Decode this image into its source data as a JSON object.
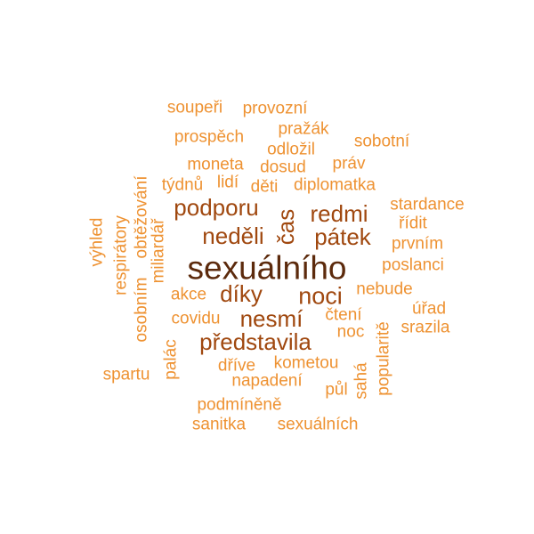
{
  "words": [
    {
      "text": "sexuálního",
      "level": 1
    },
    {
      "text": "noci",
      "level": 2
    },
    {
      "text": "nesmí",
      "level": 2
    },
    {
      "text": "podporu",
      "level": 2
    },
    {
      "text": "redmi",
      "level": 2
    },
    {
      "text": "neděli",
      "level": 2
    },
    {
      "text": "pátek",
      "level": 2
    },
    {
      "text": "čas",
      "level": 2
    },
    {
      "text": "díky",
      "level": 2
    },
    {
      "text": "představila",
      "level": 2
    },
    {
      "text": "soupeři",
      "level": 4
    },
    {
      "text": "provozní",
      "level": 4
    },
    {
      "text": "prospěch",
      "level": 4
    },
    {
      "text": "pražák",
      "level": 4
    },
    {
      "text": "odložil",
      "level": 4
    },
    {
      "text": "sobotní",
      "level": 4
    },
    {
      "text": "moneta",
      "level": 4
    },
    {
      "text": "dosud",
      "level": 4
    },
    {
      "text": "práv",
      "level": 4
    },
    {
      "text": "týdnů",
      "level": 4
    },
    {
      "text": "lidí",
      "level": 4
    },
    {
      "text": "děti",
      "level": 4
    },
    {
      "text": "diplomatka",
      "level": 4
    },
    {
      "text": "stardance",
      "level": 4
    },
    {
      "text": "řídit",
      "level": 4
    },
    {
      "text": "prvním",
      "level": 4
    },
    {
      "text": "poslanci",
      "level": 4
    },
    {
      "text": "nebude",
      "level": 4
    },
    {
      "text": "úřad",
      "level": 4
    },
    {
      "text": "srazila",
      "level": 4
    },
    {
      "text": "čtení",
      "level": 4
    },
    {
      "text": "noc",
      "level": 4
    },
    {
      "text": "akce",
      "level": 4
    },
    {
      "text": "covidu",
      "level": 4
    },
    {
      "text": "kometou",
      "level": 4
    },
    {
      "text": "dříve",
      "level": 4
    },
    {
      "text": "napadení",
      "level": 4
    },
    {
      "text": "půl",
      "level": 4
    },
    {
      "text": "spartu",
      "level": 4
    },
    {
      "text": "podmíněně",
      "level": 4
    },
    {
      "text": "sanitka",
      "level": 4
    },
    {
      "text": "sexuálních",
      "level": 4
    },
    {
      "text": "výhled",
      "level": 4
    },
    {
      "text": "respirátory",
      "level": 4
    },
    {
      "text": "osobním",
      "level": 4
    },
    {
      "text": "obtěžování",
      "level": 4
    },
    {
      "text": "miliardář",
      "level": 4
    },
    {
      "text": "palác",
      "level": 4
    },
    {
      "text": "popularitě",
      "level": 4
    },
    {
      "text": "sahá",
      "level": 4
    }
  ]
}
